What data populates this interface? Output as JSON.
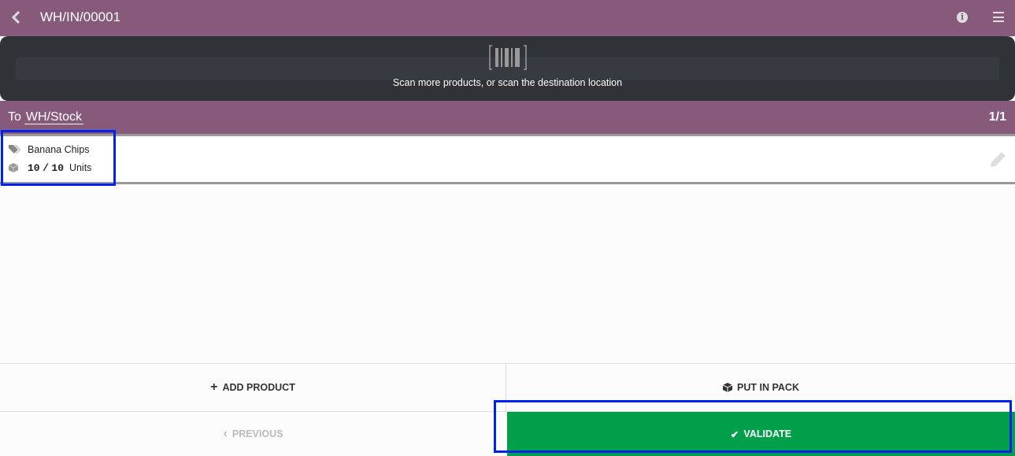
{
  "header": {
    "title": "WH/IN/00001"
  },
  "scanner": {
    "message": "Scan more products, or scan the destination location"
  },
  "location": {
    "prefix": "To",
    "destination": "WH/Stock",
    "page_count": "1/1"
  },
  "move_line": {
    "product": "Banana Chips",
    "qty_done": "10",
    "qty_separator": "/",
    "qty_demand": "10",
    "uom": "Units"
  },
  "footer": {
    "add_product": "ADD PRODUCT",
    "put_in_pack": "PUT IN PACK",
    "previous": "PREVIOUS",
    "validate": "VALIDATE"
  },
  "colors": {
    "brand": "#875a7b",
    "validate": "#00a04a",
    "scanner_bg": "#2f3237",
    "highlight": "#0022ee"
  }
}
